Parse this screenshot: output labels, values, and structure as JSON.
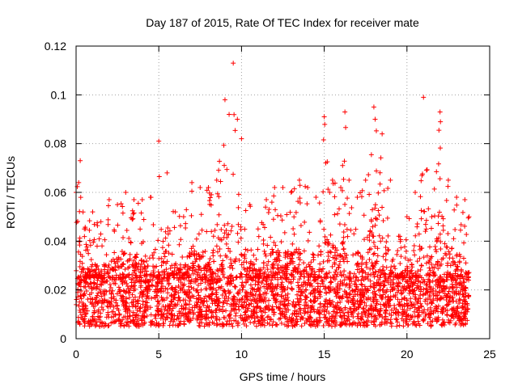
{
  "chart_data": {
    "type": "scatter",
    "title": "Day 187 of 2015, Rate Of TEC Index for receiver mate",
    "xlabel": "GPS time / hours",
    "ylabel": "ROTI / TECUs",
    "xlim": [
      0,
      25
    ],
    "ylim": [
      0,
      0.12
    ],
    "x_ticks": [
      0,
      5,
      10,
      15,
      20,
      25
    ],
    "x_tick_labels": [
      "0",
      "5",
      "10",
      "15",
      "20",
      "25"
    ],
    "y_ticks": [
      0,
      0.02,
      0.04,
      0.06,
      0.08,
      0.1,
      0.12
    ],
    "y_tick_labels": [
      "0",
      "0.02",
      "0.04",
      "0.06",
      "0.08",
      "0.1",
      "0.12"
    ],
    "grid": true,
    "marker": "plus",
    "color": "#ff0000",
    "envelope_x": [
      0,
      0.25,
      0.5,
      1,
      1.5,
      2,
      2.5,
      3,
      3.5,
      4,
      4.5,
      5,
      5.5,
      6,
      6.5,
      7,
      7.5,
      8,
      8.5,
      9,
      9.25,
      9.5,
      9.75,
      10,
      10.5,
      11,
      11.5,
      12,
      12.5,
      13,
      13.5,
      14,
      14.5,
      15,
      15.5,
      16,
      16.25,
      16.5,
      17,
      17.5,
      18,
      18.5,
      19,
      19.5,
      20,
      20.5,
      21,
      21.5,
      22,
      22.5,
      23,
      23.5,
      23.75
    ],
    "envelope_high": [
      0.06,
      0.073,
      0.045,
      0.052,
      0.048,
      0.057,
      0.055,
      0.06,
      0.057,
      0.057,
      0.058,
      0.081,
      0.068,
      0.052,
      0.05,
      0.064,
      0.062,
      0.062,
      0.065,
      0.098,
      0.092,
      0.113,
      0.09,
      0.082,
      0.055,
      0.045,
      0.057,
      0.062,
      0.062,
      0.06,
      0.065,
      0.062,
      0.058,
      0.091,
      0.065,
      0.062,
      0.093,
      0.065,
      0.058,
      0.065,
      0.095,
      0.084,
      0.065,
      0.042,
      0.05,
      0.06,
      0.099,
      0.05,
      0.093,
      0.065,
      0.058,
      0.057,
      0.05
    ],
    "baseline_low": 0.004,
    "typical_range": [
      0.005,
      0.025
    ]
  }
}
